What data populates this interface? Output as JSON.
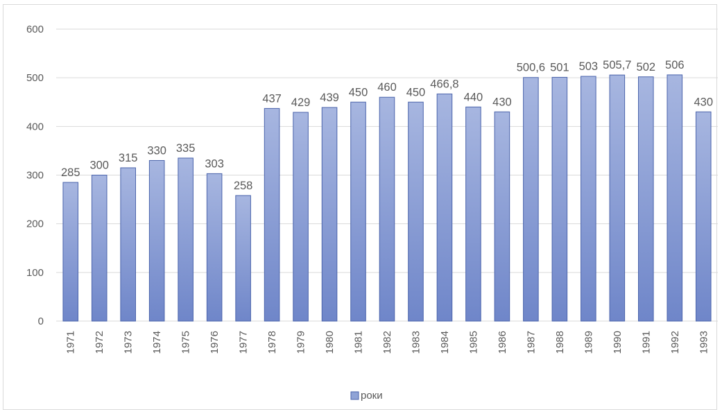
{
  "chart_data": {
    "type": "bar",
    "categories": [
      "1971",
      "1972",
      "1973",
      "1974",
      "1975",
      "1976",
      "1977",
      "1978",
      "1979",
      "1980",
      "1981",
      "1982",
      "1983",
      "1984",
      "1985",
      "1986",
      "1987",
      "1988",
      "1989",
      "1990",
      "1991",
      "1992",
      "1993"
    ],
    "series": [
      {
        "name": "роки",
        "values": [
          285,
          300,
          315,
          330,
          335,
          303,
          258,
          437,
          429,
          439,
          450,
          460,
          450,
          466.8,
          440,
          430,
          500.6,
          501,
          503,
          505.7,
          502,
          506,
          430
        ],
        "labels": [
          "285",
          "300",
          "315",
          "330",
          "335",
          "303",
          "258",
          "437",
          "429",
          "439",
          "450",
          "460",
          "450",
          "466,8",
          "440",
          "430",
          "500,6",
          "501",
          "503",
          "505,7",
          "502",
          "506",
          "430"
        ]
      }
    ],
    "ylim": [
      0,
      600
    ],
    "yticks": [
      "0",
      "100",
      "200",
      "300",
      "400",
      "500",
      "600"
    ],
    "grid": true,
    "legend_position": "bottom",
    "bar_color": "#8fa3d6",
    "bar_border_color": "#4a63ab",
    "grid_color": "#d9d9d9"
  }
}
